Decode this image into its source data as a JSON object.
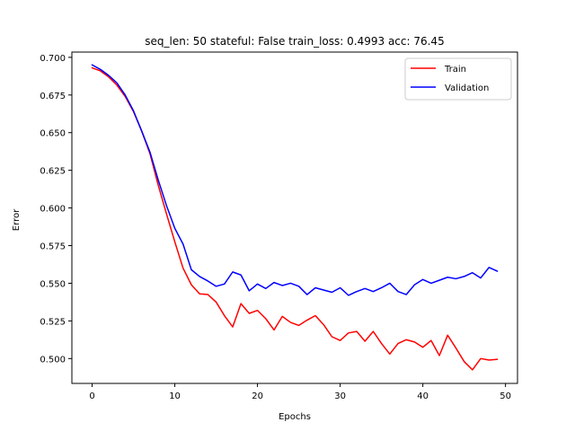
{
  "chart_data": {
    "type": "line",
    "title": "seq_len: 50 stateful: False train_loss: 0.4993 acc: 76.45",
    "xlabel": "Epochs",
    "ylabel": "Error",
    "xlim": [
      -2.45,
      51.45
    ],
    "ylim": [
      0.4835,
      0.7035
    ],
    "xticks": [
      0,
      10,
      20,
      30,
      40,
      50
    ],
    "yticks": [
      0.5,
      0.525,
      0.55,
      0.575,
      0.6,
      0.625,
      0.65,
      0.675,
      0.7
    ],
    "ytick_labels": [
      "0.500",
      "0.525",
      "0.550",
      "0.575",
      "0.600",
      "0.625",
      "0.650",
      "0.675",
      "0.700"
    ],
    "legend_position": "upper-right",
    "grid": false,
    "x": [
      0,
      1,
      2,
      3,
      4,
      5,
      6,
      7,
      8,
      9,
      10,
      11,
      12,
      13,
      14,
      15,
      16,
      17,
      18,
      19,
      20,
      21,
      22,
      23,
      24,
      25,
      26,
      27,
      28,
      29,
      30,
      31,
      32,
      33,
      34,
      35,
      36,
      37,
      38,
      39,
      40,
      41,
      42,
      43,
      44,
      45,
      46,
      47,
      48,
      49
    ],
    "series": [
      {
        "name": "Train",
        "color": "#ff0000",
        "values": [
          0.693,
          0.691,
          0.687,
          0.6815,
          0.674,
          0.664,
          0.651,
          0.636,
          0.615,
          0.596,
          0.5775,
          0.56,
          0.549,
          0.543,
          0.5425,
          0.5375,
          0.5285,
          0.521,
          0.5365,
          0.53,
          0.532,
          0.5265,
          0.519,
          0.528,
          0.524,
          0.522,
          0.5255,
          0.5285,
          0.5225,
          0.5145,
          0.512,
          0.517,
          0.518,
          0.5115,
          0.518,
          0.51,
          0.503,
          0.51,
          0.5125,
          0.511,
          0.5075,
          0.512,
          0.502,
          0.5155,
          0.507,
          0.498,
          0.4925,
          0.5,
          0.499,
          0.4995
        ]
      },
      {
        "name": "Validation",
        "color": "#0000ff",
        "values": [
          0.695,
          0.692,
          0.688,
          0.683,
          0.675,
          0.6645,
          0.651,
          0.637,
          0.6185,
          0.6015,
          0.5865,
          0.576,
          0.559,
          0.5545,
          0.5515,
          0.548,
          0.5495,
          0.5575,
          0.5555,
          0.545,
          0.5495,
          0.5465,
          0.5505,
          0.5485,
          0.55,
          0.548,
          0.5425,
          0.547,
          0.5455,
          0.544,
          0.547,
          0.542,
          0.5445,
          0.5465,
          0.5445,
          0.547,
          0.55,
          0.5445,
          0.5425,
          0.549,
          0.5525,
          0.55,
          0.552,
          0.554,
          0.553,
          0.5545,
          0.557,
          0.5535,
          0.5605,
          0.558
        ]
      }
    ]
  }
}
